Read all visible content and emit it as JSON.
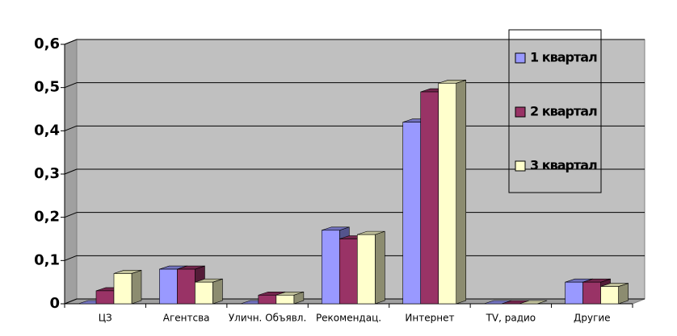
{
  "chart_data": {
    "type": "bar",
    "categories": [
      "ЦЗ",
      "Агентсва",
      "Уличн. Объявл.",
      "Рекомендац.",
      "Интернет",
      "TV, радио",
      "Другие"
    ],
    "series": [
      {
        "name": "1 квартал",
        "color": "#9999ff",
        "values": [
          0,
          0.08,
          0,
          0.17,
          0.42,
          0,
          0.05
        ]
      },
      {
        "name": "2 квартал",
        "color": "#993366",
        "values": [
          0.03,
          0.08,
          0.02,
          0.15,
          0.49,
          0,
          0.05
        ]
      },
      {
        "name": "3 квартал",
        "color": "#ffffcc",
        "values": [
          0.07,
          0.05,
          0.02,
          0.16,
          0.51,
          0,
          0.04
        ]
      }
    ],
    "ylim": [
      0,
      0.6
    ],
    "yticks": [
      0,
      {
        "value": 0.1,
        "label": "0,1"
      },
      {
        "value": 0.2,
        "label": "0,2"
      },
      {
        "value": 0.3,
        "label": "0,3"
      },
      {
        "value": 0.4,
        "label": "0,4"
      },
      {
        "value": 0.5,
        "label": "0,5"
      },
      {
        "value": 0.6,
        "label": "0,6"
      }
    ],
    "grid": true,
    "legend": "right"
  }
}
